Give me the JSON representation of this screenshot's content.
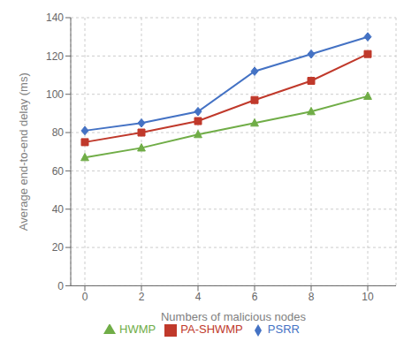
{
  "chart_data": {
    "type": "line",
    "x": [
      0,
      2,
      4,
      6,
      8,
      10
    ],
    "series": [
      {
        "name": "PSRR",
        "color": "#4472c4",
        "marker": "diamond",
        "values": [
          81,
          85,
          91,
          112,
          121,
          130
        ]
      },
      {
        "name": "PA-SHWMP",
        "color": "#c0392b",
        "marker": "square",
        "values": [
          75,
          80,
          86,
          97,
          107,
          121
        ]
      },
      {
        "name": "HWMP",
        "color": "#70ad47",
        "marker": "triangle",
        "values": [
          67,
          72,
          79,
          85,
          91,
          99
        ]
      }
    ],
    "xlabel": "Numbers of malicious nodes",
    "ylabel": "Average end-to-end delay (ms)",
    "xlim": [
      -0.5,
      11.0
    ],
    "ylim": [
      0,
      140
    ],
    "xticks": [
      0,
      2,
      4,
      6,
      8,
      10
    ],
    "yticks": [
      0,
      20,
      40,
      60,
      80,
      100,
      120,
      140
    ],
    "grid": true,
    "legend": "bottom"
  }
}
